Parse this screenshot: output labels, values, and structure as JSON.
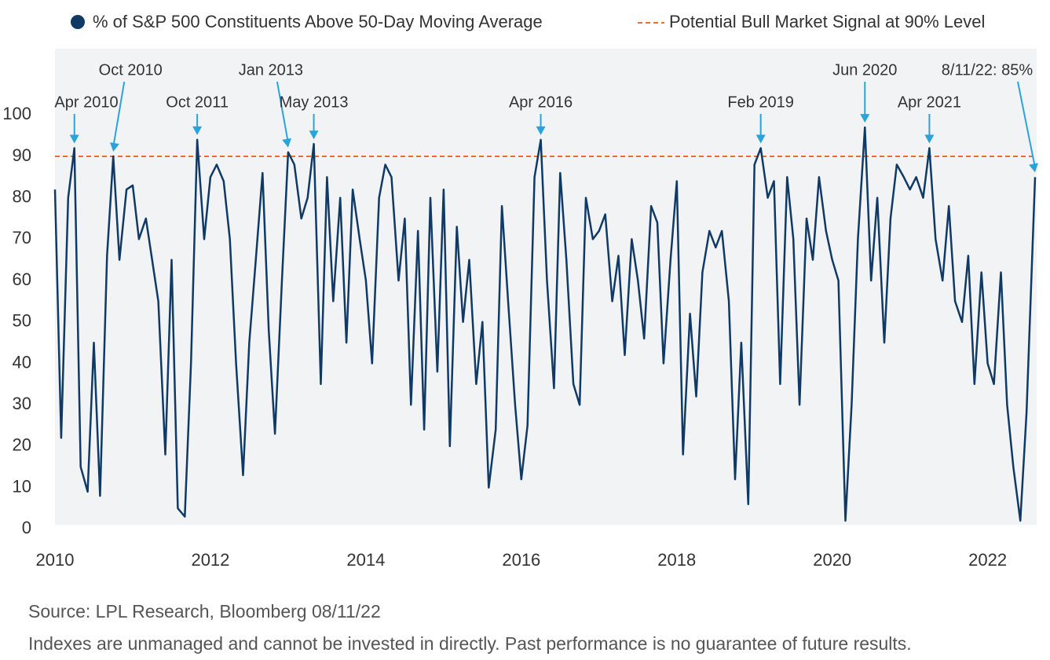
{
  "chart_data": {
    "type": "line",
    "series": [
      {
        "name": "% of S&P 500 Constituents Above 50-Day Moving Average",
        "color": "#0f3a66",
        "values": [
          82,
          22,
          80,
          92,
          15,
          9,
          45,
          8,
          66,
          90,
          65,
          82,
          83,
          70,
          75,
          65,
          55,
          18,
          65,
          5,
          3,
          40,
          94,
          70,
          85,
          88,
          84,
          70,
          40,
          13,
          45,
          64,
          86,
          48,
          23,
          60,
          91,
          88,
          75,
          80,
          93,
          35,
          85,
          55,
          80,
          45,
          82,
          70,
          60,
          40,
          80,
          88,
          85,
          60,
          75,
          30,
          72,
          24,
          80,
          38,
          82,
          20,
          73,
          50,
          65,
          35,
          50,
          10,
          24,
          78,
          55,
          30,
          12,
          25,
          85,
          94,
          60,
          34,
          86,
          65,
          35,
          30,
          80,
          70,
          72,
          76,
          55,
          66,
          42,
          70,
          60,
          46,
          78,
          74,
          40,
          65,
          84,
          18,
          52,
          32,
          62,
          72,
          68,
          72,
          55,
          12,
          45,
          6,
          88,
          92,
          80,
          84,
          35,
          85,
          70,
          30,
          75,
          65,
          85,
          72,
          65,
          60,
          2,
          30,
          70,
          97,
          60,
          80,
          45,
          75,
          88,
          85,
          82,
          85,
          80,
          92,
          70,
          60,
          78,
          55,
          50,
          66,
          35,
          62,
          40,
          35,
          62,
          30,
          15,
          2,
          28,
          85
        ]
      }
    ],
    "x": [
      2010,
      2010.08,
      2010.17,
      2010.25,
      2010.33,
      2010.42,
      2010.5,
      2010.58,
      2010.67,
      2010.75,
      2010.83,
      2010.92,
      2011,
      2011.08,
      2011.17,
      2011.25,
      2011.33,
      2011.42,
      2011.5,
      2011.58,
      2011.67,
      2011.75,
      2011.83,
      2011.92,
      2012,
      2012.08,
      2012.17,
      2012.25,
      2012.33,
      2012.42,
      2012.5,
      2012.58,
      2012.67,
      2012.75,
      2012.83,
      2012.92,
      2013,
      2013.08,
      2013.17,
      2013.25,
      2013.33,
      2013.42,
      2013.5,
      2013.58,
      2013.67,
      2013.75,
      2013.83,
      2013.92,
      2014,
      2014.08,
      2014.17,
      2014.25,
      2014.33,
      2014.42,
      2014.5,
      2014.58,
      2014.67,
      2014.75,
      2014.83,
      2014.92,
      2015,
      2015.08,
      2015.17,
      2015.25,
      2015.33,
      2015.42,
      2015.5,
      2015.58,
      2015.67,
      2015.75,
      2015.83,
      2015.92,
      2016,
      2016.08,
      2016.17,
      2016.25,
      2016.33,
      2016.42,
      2016.5,
      2016.58,
      2016.67,
      2016.75,
      2016.83,
      2016.92,
      2017,
      2017.08,
      2017.17,
      2017.25,
      2017.33,
      2017.42,
      2017.5,
      2017.58,
      2017.67,
      2017.75,
      2017.83,
      2017.92,
      2018,
      2018.08,
      2018.17,
      2018.25,
      2018.33,
      2018.42,
      2018.5,
      2018.58,
      2018.67,
      2018.75,
      2018.83,
      2018.92,
      2019,
      2019.08,
      2019.17,
      2019.25,
      2019.33,
      2019.42,
      2019.5,
      2019.58,
      2019.67,
      2019.75,
      2019.83,
      2019.92,
      2020,
      2020.08,
      2020.17,
      2020.25,
      2020.33,
      2020.42,
      2020.5,
      2020.58,
      2020.67,
      2020.75,
      2020.83,
      2020.92,
      2021,
      2021.08,
      2021.17,
      2021.25,
      2021.33,
      2021.42,
      2021.5,
      2021.58,
      2021.67,
      2021.75,
      2021.83,
      2021.92,
      2022,
      2022.08,
      2022.17,
      2022.25,
      2022.33,
      2022.42,
      2022.5,
      2022.61
    ],
    "reference": {
      "name": "Potential Bull Market Signal at 90% Level",
      "value": 90,
      "color": "#e8702a",
      "style": "dashed"
    },
    "annotations": [
      {
        "text": "Apr 2010",
        "x": 2010.25,
        "y": 92
      },
      {
        "text": "Oct 2010",
        "x": 2010.75,
        "y": 90
      },
      {
        "text": "Oct 2011",
        "x": 2011.83,
        "y": 94
      },
      {
        "text": "Jan 2013",
        "x": 2013,
        "y": 91
      },
      {
        "text": "May 2013",
        "x": 2013.33,
        "y": 93
      },
      {
        "text": "Apr 2016",
        "x": 2016.25,
        "y": 94
      },
      {
        "text": "Feb 2019",
        "x": 2019.08,
        "y": 92
      },
      {
        "text": "Jun 2020",
        "x": 2020.42,
        "y": 97
      },
      {
        "text": "Apr 2021",
        "x": 2021.25,
        "y": 92
      },
      {
        "text": "8/11/22: 85%",
        "x": 2022.61,
        "y": 85
      }
    ],
    "annotation_color": "#2aa3dc",
    "xlim": [
      2010,
      2022.63
    ],
    "xticks": [
      2010,
      2012,
      2014,
      2016,
      2018,
      2020,
      2022
    ],
    "ylim": [
      1,
      116
    ],
    "yticks": [
      0,
      10,
      20,
      30,
      40,
      50,
      60,
      70,
      80,
      90,
      100
    ],
    "grid": false,
    "source": "Source: LPL Research, Bloomberg  08/11/22",
    "footnote": "Indexes are unmanaged and cannot be invested in directly. Past performance is no guarantee of future results."
  }
}
